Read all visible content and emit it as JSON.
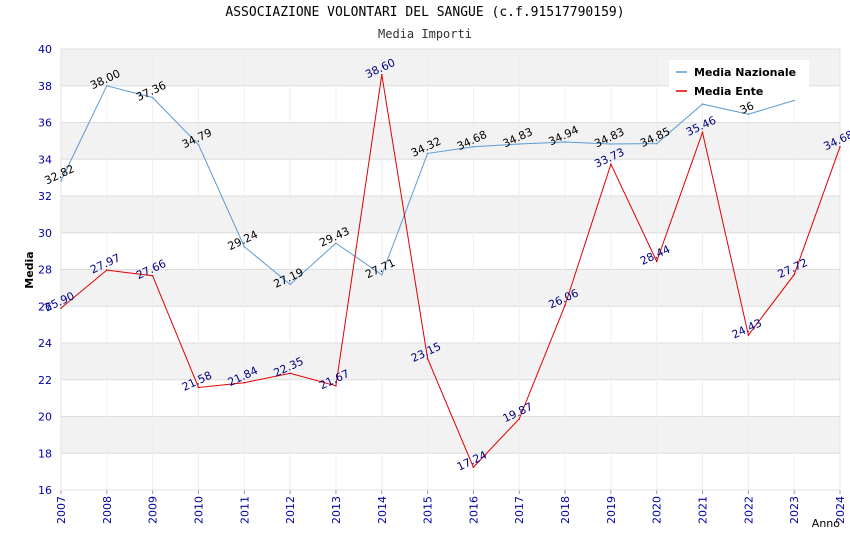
{
  "chart_data": {
    "type": "line",
    "title": "ASSOCIAZIONE VOLONTARI DEL SANGUE (c.f.91517790159)",
    "subtitle": "Media Importi",
    "xlabel": "Anno",
    "ylabel": "Media",
    "ylim": [
      16,
      40
    ],
    "yticks": [
      "16",
      "18",
      "20",
      "22",
      "24",
      "26",
      "28",
      "30",
      "32",
      "34",
      "36",
      "38",
      "40"
    ],
    "x": [
      "2007",
      "2008",
      "2009",
      "2010",
      "2011",
      "2012",
      "2013",
      "2014",
      "2015",
      "2016",
      "2017",
      "2018",
      "2019",
      "2020",
      "2021",
      "2022",
      "2023",
      "2024"
    ],
    "legend_position": "top-right",
    "series": [
      {
        "name": "Media Nazionale",
        "color": "#5b9bd5",
        "label_color": "#000000",
        "values": [
          32.82,
          38.0,
          37.36,
          34.79,
          29.24,
          27.19,
          29.43,
          27.71,
          34.32,
          34.68,
          34.83,
          34.94,
          34.83,
          34.85,
          37.0,
          36.45,
          37.2,
          null
        ],
        "labels": [
          "32.82",
          "38.00",
          "37.36",
          "34.79",
          "29.24",
          "27.19",
          "29.43",
          "27.71",
          "34.32",
          "34.68",
          "34.83",
          "34.94",
          "34.83",
          "34.85",
          "",
          "36",
          "",
          ""
        ]
      },
      {
        "name": "Media Ente",
        "color": "#e00000",
        "label_color": "#000080",
        "values": [
          25.9,
          27.97,
          27.66,
          21.58,
          21.84,
          22.35,
          21.67,
          38.6,
          23.15,
          17.24,
          19.87,
          26.06,
          33.73,
          28.44,
          35.46,
          24.43,
          27.72,
          34.68
        ],
        "labels": [
          "25.90",
          "27.97",
          "27.66",
          "21.58",
          "21.84",
          "22.35",
          "21.67",
          "38.60",
          "23.15",
          "17.24",
          "19.87",
          "26.06",
          "33.73",
          "28.44",
          "35.46",
          "24.43",
          "27.72",
          "34.68"
        ]
      }
    ]
  }
}
